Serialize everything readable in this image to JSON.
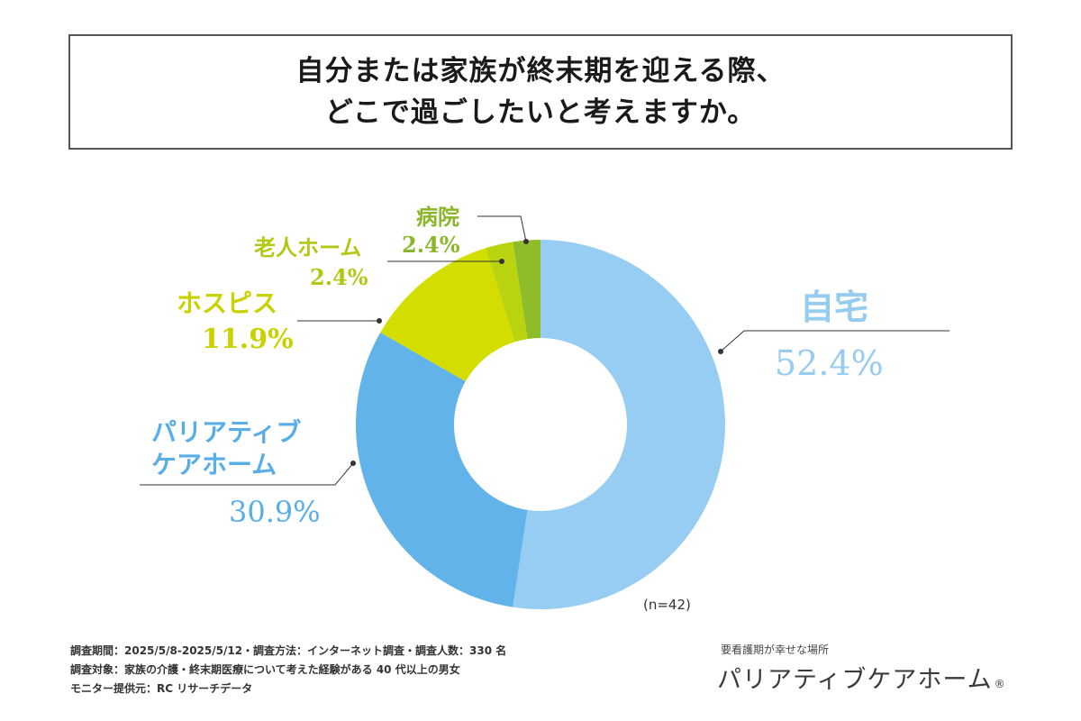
{
  "title": {
    "line1": "自分または家族が終末期を迎える際、",
    "line2": "どこで過ごしたいと考えますか。"
  },
  "chart_data": {
    "type": "pie",
    "subtype": "donut",
    "categories": [
      "自宅",
      "パリアティブケアホーム",
      "ホスピス",
      "老人ホーム",
      "病院"
    ],
    "values": [
      52.4,
      30.9,
      11.9,
      2.4,
      2.4
    ],
    "unit": "%",
    "colors": [
      "#97cdf3",
      "#62b3e9",
      "#d3dd00",
      "#b9d30f",
      "#8fbd2a"
    ],
    "labels": [
      {
        "name": "自宅",
        "value_text": "52.4%",
        "color": "#95ccf0"
      },
      {
        "name_lines": [
          "パリアティブ",
          "ケアホーム"
        ],
        "value_text": "30.9%",
        "color": "#5aaee6"
      },
      {
        "name": "ホスピス",
        "value_text": "11.9%",
        "color": "#c9d200"
      },
      {
        "name": "老人ホーム",
        "value_text": "2.4%",
        "color": "#b3c814"
      },
      {
        "name": "病院",
        "value_text": "2.4%",
        "color": "#8ab62a"
      }
    ],
    "sample_note": "(n=42)"
  },
  "footer": {
    "line1": "調査期間：2025/5/8-2025/5/12・調査方法：インターネット調査・調査人数：330 名",
    "line2": "調査対象：家族の介護・終末期医療について考えた経験がある 40 代以上の男女",
    "line3": "モニター提供元：RC リサーチデータ"
  },
  "brand": {
    "tagline": "要看護期が幸せな場所",
    "name": "パリアティブケアホーム",
    "reg_mark": "®"
  }
}
